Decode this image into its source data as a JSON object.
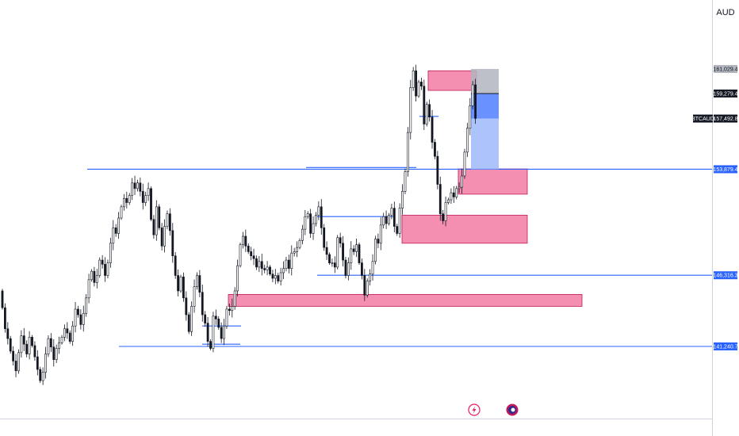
{
  "currency": "AUD",
  "symbol": "BTCAUD",
  "price_labels": [
    {
      "name": "tp-price",
      "value": 161029.4,
      "text": "161,029.4",
      "bg": "#b2b5be",
      "fg": "#131722"
    },
    {
      "name": "entry-price",
      "value": 159279.4,
      "text": "159,279.4",
      "bg": "#131722",
      "fg": "#ffffff"
    },
    {
      "name": "last-price",
      "value": 157492.8,
      "text": "157,492.8",
      "bg": "#131722",
      "fg": "#ffffff"
    },
    {
      "name": "level-price-1",
      "value": 153879.4,
      "text": "153,879.4",
      "bg": "#2962ff",
      "fg": "#ffffff"
    },
    {
      "name": "level-price-2",
      "value": 146316.3,
      "text": "146,316.3",
      "bg": "#2962ff",
      "fg": "#ffffff"
    },
    {
      "name": "level-price-3",
      "value": 141240.7,
      "text": "141,240.7",
      "bg": "#2962ff",
      "fg": "#ffffff"
    }
  ],
  "colors": {
    "candle": "#131722",
    "level_line": "#2962ff",
    "zone_fill": "#f48fb1",
    "zone_border": "#c2185b",
    "position_target": "#b2b5be",
    "position_stop": "#2962ff",
    "position_zone": "#a4bdfb",
    "lightning_icon": "#e91e63",
    "avatar_icon": "#c2185b"
  },
  "chart_data": {
    "type": "candlestick",
    "symbol": "BTCAUD",
    "quote_currency": "AUD",
    "price_range": [
      135000,
      163500
    ],
    "horizontal_levels": [
      153879.4,
      146316.3,
      141240.7
    ],
    "supply_demand_zones": [
      {
        "price_top": 160900,
        "price_bottom": 159500
      },
      {
        "price_top": 153900,
        "price_bottom": 152100
      },
      {
        "price_top": 150600,
        "price_bottom": 148600
      },
      {
        "price_top": 144950,
        "price_bottom": 144100
      }
    ],
    "position": {
      "target": 161029.4,
      "entry": 159279.4,
      "stop": 153879.4,
      "last": 157492.8
    },
    "closes": [
      144000,
      142500,
      141800,
      140900,
      140200,
      139500,
      140800,
      142000,
      141400,
      140700,
      141900,
      141300,
      140500,
      139600,
      138800,
      139400,
      140700,
      141800,
      141200,
      140300,
      141100,
      141500,
      141900,
      142500,
      142200,
      141600,
      142700,
      143900,
      143500,
      142800,
      143600,
      144700,
      146000,
      146600,
      145800,
      146300,
      147400,
      147100,
      146300,
      147200,
      148600,
      149700,
      149300,
      150400,
      151200,
      151800,
      151500,
      152000,
      152900,
      152500,
      152900,
      152300,
      151500,
      152000,
      152500,
      150300,
      149200,
      151200,
      149700,
      148400,
      149800,
      150700,
      149500,
      147700,
      146300,
      145200,
      146200,
      144700,
      143500,
      142300,
      144100,
      145500,
      146300,
      145100,
      143500,
      142900,
      141600,
      141100,
      143400,
      143200,
      142600,
      141800,
      142700,
      143900,
      143800,
      144100,
      145200,
      147000,
      148500,
      149100,
      148400,
      148000,
      147700,
      147500,
      146900,
      147300,
      146800,
      146700,
      146900,
      146400,
      146100,
      146300,
      145900,
      146500,
      146800,
      147400,
      146800,
      147900,
      148000,
      148300,
      148800,
      149600,
      150500,
      150700,
      149300,
      150000,
      150600,
      151200,
      149700,
      148300,
      147800,
      147200,
      147200,
      146900,
      149000,
      148600,
      147400,
      146300,
      147200,
      148200,
      148000,
      148500,
      147200,
      146300,
      144900,
      145900,
      146400,
      147300,
      148900,
      148600,
      149900,
      150500,
      150000,
      150600,
      151100,
      149800,
      149300,
      151100,
      152300,
      153700,
      156500,
      159700,
      160900,
      159100,
      160100,
      159800,
      157100,
      158500,
      157600,
      155800,
      154800,
      152800,
      150700,
      150200,
      151500,
      151700,
      152200,
      151900,
      152500,
      152600,
      153400,
      155100,
      156800,
      158400,
      159900,
      157500
    ]
  }
}
